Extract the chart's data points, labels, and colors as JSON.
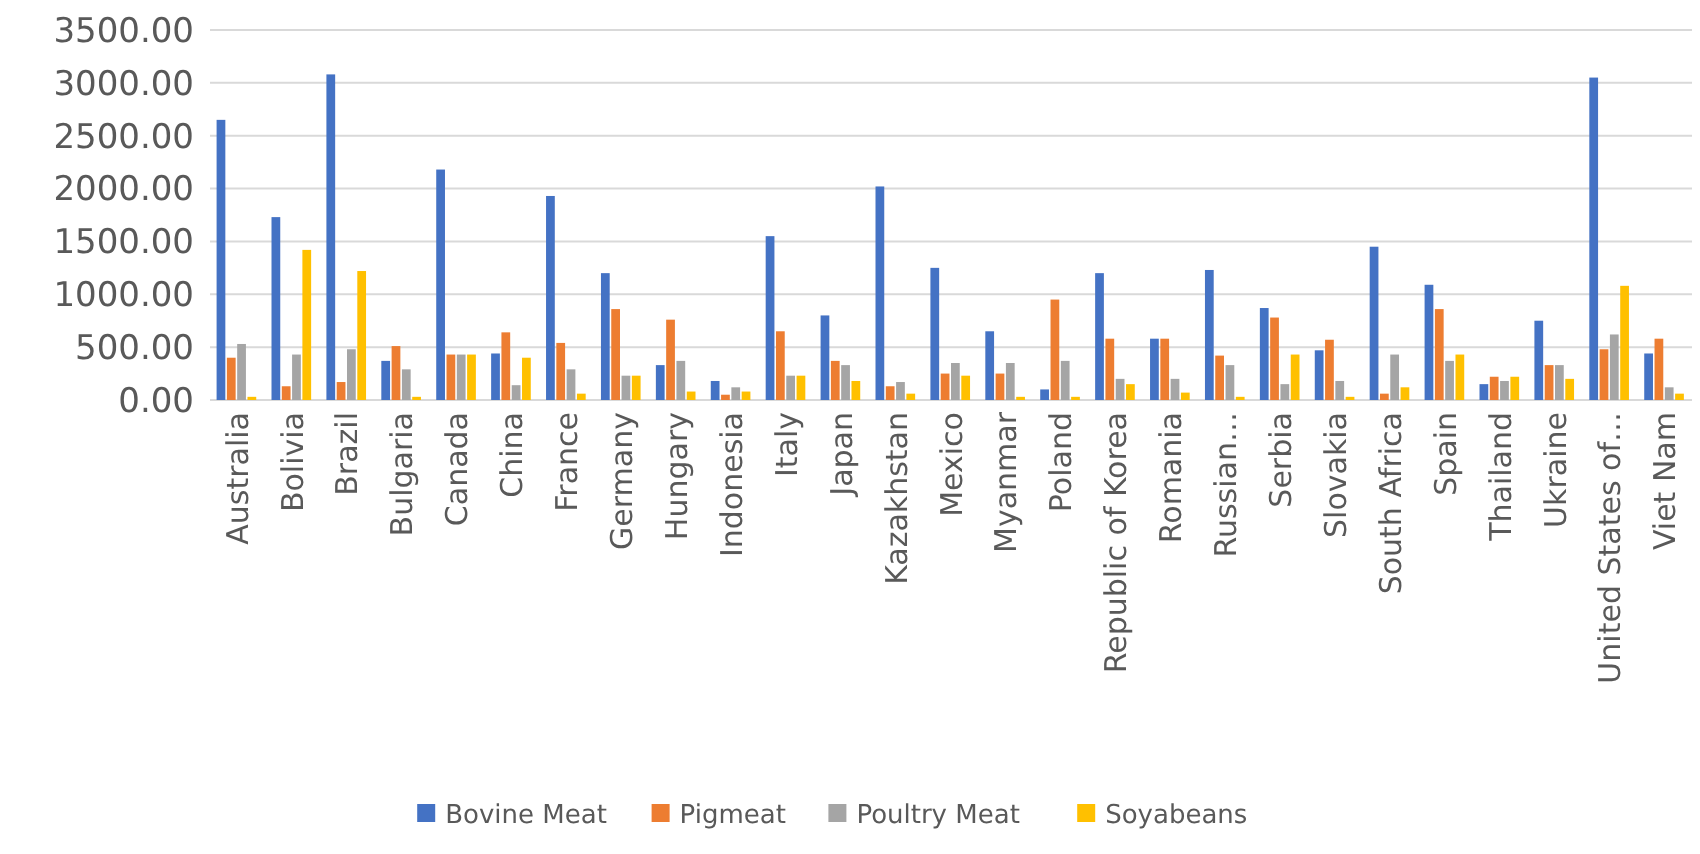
{
  "chart_data": {
    "type": "bar",
    "categories": [
      "Australia",
      "Bolivia",
      "Brazil",
      "Bulgaria",
      "Canada",
      "China",
      "France",
      "Germany",
      "Hungary",
      "Indonesia",
      "Italy",
      "Japan",
      "Kazakhstan",
      "Mexico",
      "Myanmar",
      "Poland",
      "Republic of Korea",
      "Romania",
      "Russian…",
      "Serbia",
      "Slovakia",
      "South Africa",
      "Spain",
      "Thailand",
      "Ukraine",
      "United States of…",
      "Viet Nam"
    ],
    "series": [
      {
        "name": "Bovine Meat",
        "color": "#4472c4",
        "values": [
          2650,
          1730,
          3080,
          370,
          2180,
          440,
          1930,
          1200,
          330,
          180,
          1550,
          800,
          2020,
          1250,
          650,
          100,
          1200,
          580,
          1230,
          870,
          470,
          1450,
          1090,
          150,
          750,
          3050,
          440
        ]
      },
      {
        "name": "Pigmeat",
        "color": "#ed7d31",
        "values": [
          400,
          130,
          170,
          510,
          430,
          640,
          540,
          860,
          760,
          50,
          650,
          370,
          130,
          250,
          250,
          950,
          580,
          580,
          420,
          780,
          570,
          60,
          860,
          220,
          330,
          480,
          580
        ]
      },
      {
        "name": "Poultry Meat",
        "color": "#a5a5a5",
        "values": [
          530,
          430,
          480,
          290,
          430,
          140,
          290,
          230,
          370,
          120,
          230,
          330,
          170,
          350,
          350,
          370,
          200,
          200,
          330,
          150,
          180,
          430,
          370,
          180,
          330,
          620,
          120
        ]
      },
      {
        "name": "Soyabeans",
        "color": "#ffc000",
        "values": [
          30,
          1420,
          1220,
          30,
          430,
          400,
          60,
          230,
          80,
          80,
          230,
          180,
          60,
          230,
          30,
          30,
          150,
          70,
          30,
          430,
          30,
          120,
          430,
          220,
          200,
          1080,
          60
        ]
      }
    ],
    "ylim": [
      0,
      3500
    ],
    "yticks": [
      {
        "value": 0,
        "label": "0.00"
      },
      {
        "value": 500,
        "label": "500.00"
      },
      {
        "value": 1000,
        "label": "1000.00"
      },
      {
        "value": 1500,
        "label": "1500.00"
      },
      {
        "value": 2000,
        "label": "2000.00"
      },
      {
        "value": 2500,
        "label": "2500.00"
      },
      {
        "value": 3000,
        "label": "3000.00"
      },
      {
        "value": 3500,
        "label": "3500.00"
      }
    ],
    "grid": "y",
    "legend": "bottom"
  }
}
